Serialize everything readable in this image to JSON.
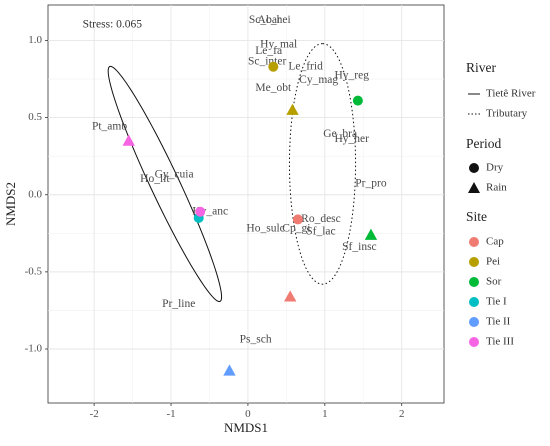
{
  "chart_data": {
    "type": "scatter",
    "title": "",
    "xlabel": "NMDS1",
    "ylabel": "NMDS2",
    "xlim": [
      -2.6,
      2.55
    ],
    "ylim": [
      -1.35,
      1.23
    ],
    "xticks": [
      -2,
      -1,
      0,
      1,
      2
    ],
    "yticks": [
      1.0,
      0.5,
      0.0,
      -0.5,
      -1.0
    ],
    "xtick_labels": [
      "-2",
      "-1",
      "0",
      "1",
      "2"
    ],
    "ytick_labels": [
      "1.0",
      "0.5",
      "0.0",
      "-0.5",
      "-1.0"
    ],
    "grid": true,
    "stress_label": "Stress: 0.065",
    "site_colors": {
      "Cap": "#f07b72",
      "Pei": "#b79f00",
      "Sor": "#00ba38",
      "Tie I": "#00bfc4",
      "Tie II": "#619cff",
      "Tie III": "#f564e3"
    },
    "points": [
      {
        "site": "Cap",
        "period": "Dry",
        "x": 0.65,
        "y": -0.16
      },
      {
        "site": "Cap",
        "period": "Rain",
        "x": 0.55,
        "y": -0.66
      },
      {
        "site": "Pei",
        "period": "Dry",
        "x": 0.33,
        "y": 0.83
      },
      {
        "site": "Pei",
        "period": "Rain",
        "x": 0.58,
        "y": 0.55
      },
      {
        "site": "Sor",
        "period": "Dry",
        "x": 1.43,
        "y": 0.61
      },
      {
        "site": "Sor",
        "period": "Rain",
        "x": 1.6,
        "y": -0.26
      },
      {
        "site": "Tie I",
        "period": "Dry",
        "x": -0.64,
        "y": -0.15
      },
      {
        "site": "Tie II",
        "period": "Rain",
        "x": -0.24,
        "y": -1.14
      },
      {
        "site": "Tie III",
        "period": "Dry",
        "x": -0.62,
        "y": -0.11
      },
      {
        "site": "Tie III",
        "period": "Rain",
        "x": -1.55,
        "y": 0.35
      }
    ],
    "species": [
      {
        "label": "Sc_bar",
        "x": 0.22,
        "y": 1.13
      },
      {
        "label": "Ac_hei",
        "x": 0.34,
        "y": 1.13
      },
      {
        "label": "Hy_mal",
        "x": 0.4,
        "y": 0.97
      },
      {
        "label": "Le_fa",
        "x": 0.27,
        "y": 0.93
      },
      {
        "label": "Sc_inter",
        "x": 0.25,
        "y": 0.86
      },
      {
        "label": "Le_frid",
        "x": 0.75,
        "y": 0.83
      },
      {
        "label": "Cy_mag",
        "x": 0.92,
        "y": 0.74
      },
      {
        "label": "Hy_reg",
        "x": 1.35,
        "y": 0.77
      },
      {
        "label": "Me_obt",
        "x": 0.33,
        "y": 0.69
      },
      {
        "label": "Ge_bra",
        "x": 1.2,
        "y": 0.39
      },
      {
        "label": "Hy_her",
        "x": 1.35,
        "y": 0.36
      },
      {
        "label": "Pr_pro",
        "x": 1.6,
        "y": 0.07
      },
      {
        "label": "Pt_amb",
        "x": -1.8,
        "y": 0.44
      },
      {
        "label": "Gy_cuia",
        "x": -0.96,
        "y": 0.13
      },
      {
        "label": "Ho_lit",
        "x": -1.21,
        "y": 0.1
      },
      {
        "label": "Hy_anc",
        "x": -0.49,
        "y": -0.11
      },
      {
        "label": "Ro_desc",
        "x": 0.95,
        "y": -0.16
      },
      {
        "label": "Ho_sulc",
        "x": 0.23,
        "y": -0.22
      },
      {
        "label": "Cp_gi",
        "x": 0.63,
        "y": -0.22
      },
      {
        "label": "Sf_lac",
        "x": 0.95,
        "y": -0.24
      },
      {
        "label": "Sf_insc",
        "x": 1.45,
        "y": -0.34
      },
      {
        "label": "Pr_line",
        "x": -0.9,
        "y": -0.71
      },
      {
        "label": "Ps_sch",
        "x": 0.1,
        "y": -0.94
      }
    ],
    "ellipses": [
      {
        "river": "Tietê River",
        "cx": -1.08,
        "cy": 0.07,
        "a": 1.05,
        "b": 0.15,
        "angle_deg": -46
      },
      {
        "river": "Tributary",
        "cx": 0.97,
        "cy": 0.2,
        "a": 0.78,
        "b": 0.43,
        "angle_deg": 90
      }
    ],
    "legends": {
      "river": {
        "title": "River",
        "items": [
          {
            "label": "Tietê River",
            "line": "solid"
          },
          {
            "label": "Tributary",
            "line": "dotted"
          }
        ]
      },
      "period": {
        "title": "Period",
        "items": [
          {
            "label": "Dry",
            "shape": "circle"
          },
          {
            "label": "Rain",
            "shape": "triangle"
          }
        ]
      },
      "site": {
        "title": "Site",
        "items": [
          "Cap",
          "Pei",
          "Sor",
          "Tie I",
          "Tie II",
          "Tie III"
        ]
      }
    }
  }
}
